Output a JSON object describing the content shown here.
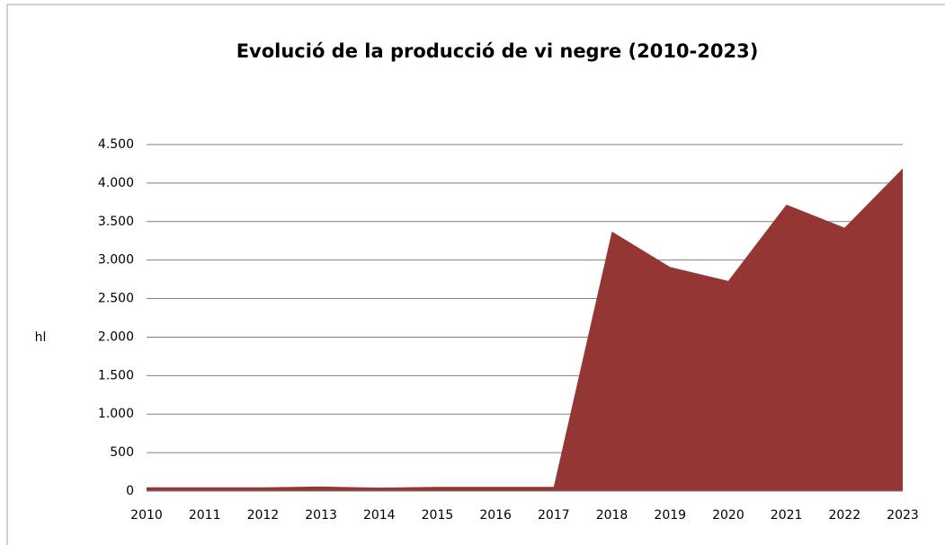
{
  "chart_data": {
    "type": "area",
    "title": "Evolució de la producció de vi negre (2010-2023)",
    "y_label": "hl",
    "categories": [
      "2010",
      "2011",
      "2012",
      "2013",
      "2014",
      "2015",
      "2016",
      "2017",
      "2018",
      "2019",
      "2020",
      "2021",
      "2022",
      "2023"
    ],
    "values": [
      50,
      50,
      50,
      60,
      45,
      55,
      55,
      55,
      3370,
      2910,
      2730,
      3720,
      3420,
      4190
    ],
    "color": "#943634",
    "ylim": [
      0,
      4500
    ],
    "yticks": [
      0,
      500,
      {
        "value": 1000,
        "label": "1.000"
      },
      {
        "value": 1500,
        "label": "1.500"
      },
      {
        "value": 2000,
        "label": "2.000"
      },
      {
        "value": 2500,
        "label": "2.500"
      },
      {
        "value": 3000,
        "label": "3.000"
      },
      {
        "value": 3500,
        "label": "3.500"
      },
      {
        "value": 4000,
        "label": "4.000"
      },
      {
        "value": 4500,
        "label": "4.500"
      }
    ],
    "grid": true
  }
}
